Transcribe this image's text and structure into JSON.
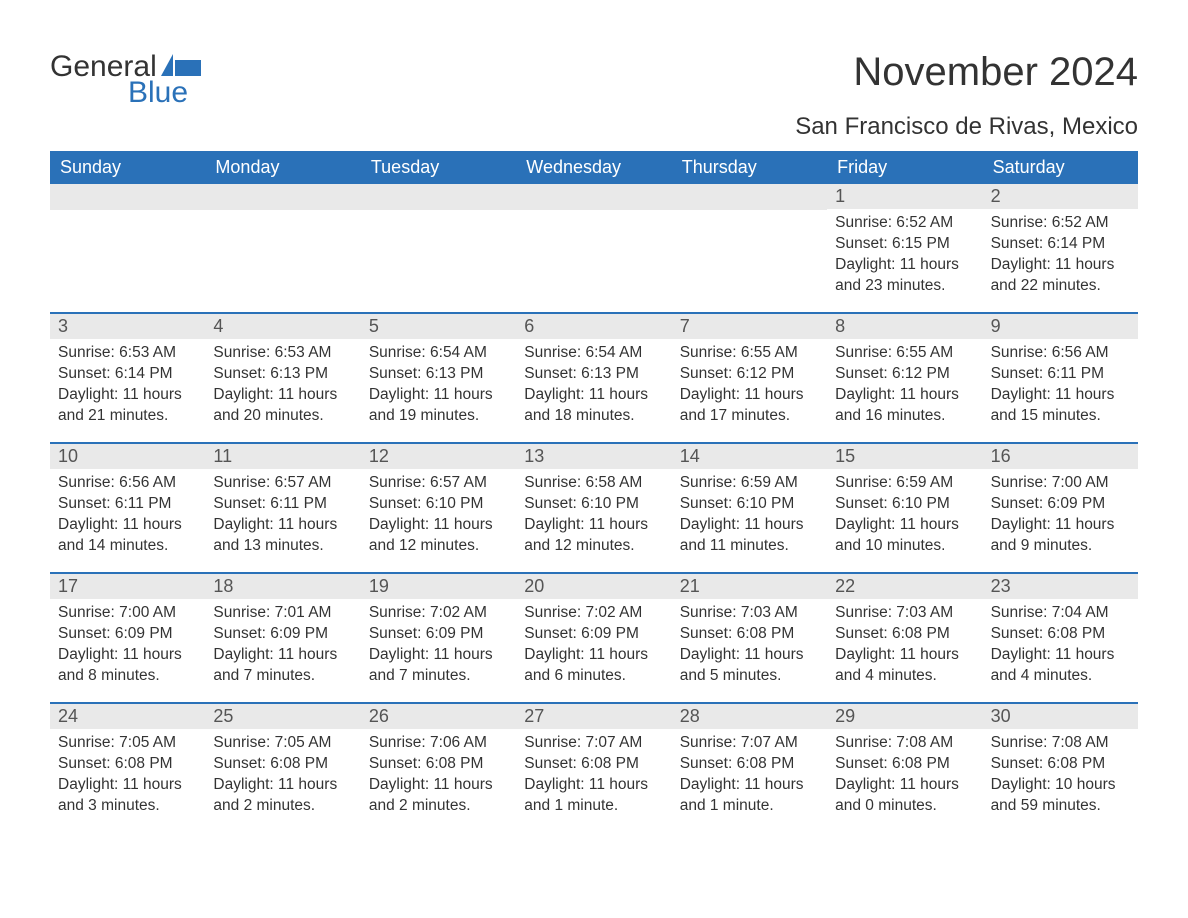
{
  "logo": {
    "text_general": "General",
    "text_blue": "Blue",
    "flag_color": "#2a71b8"
  },
  "title": "November 2024",
  "location": "San Francisco de Rivas, Mexico",
  "colors": {
    "header_bg": "#2a71b8",
    "header_text": "#ffffff",
    "daynum_bg": "#e9e9e9",
    "row_border": "#2a71b8",
    "body_text": "#333333"
  },
  "weekdays": [
    "Sunday",
    "Monday",
    "Tuesday",
    "Wednesday",
    "Thursday",
    "Friday",
    "Saturday"
  ],
  "weeks": [
    [
      {
        "empty": true
      },
      {
        "empty": true
      },
      {
        "empty": true
      },
      {
        "empty": true
      },
      {
        "empty": true
      },
      {
        "day": "1",
        "sunrise": "Sunrise: 6:52 AM",
        "sunset": "Sunset: 6:15 PM",
        "daylight": "Daylight: 11 hours and 23 minutes."
      },
      {
        "day": "2",
        "sunrise": "Sunrise: 6:52 AM",
        "sunset": "Sunset: 6:14 PM",
        "daylight": "Daylight: 11 hours and 22 minutes."
      }
    ],
    [
      {
        "day": "3",
        "sunrise": "Sunrise: 6:53 AM",
        "sunset": "Sunset: 6:14 PM",
        "daylight": "Daylight: 11 hours and 21 minutes."
      },
      {
        "day": "4",
        "sunrise": "Sunrise: 6:53 AM",
        "sunset": "Sunset: 6:13 PM",
        "daylight": "Daylight: 11 hours and 20 minutes."
      },
      {
        "day": "5",
        "sunrise": "Sunrise: 6:54 AM",
        "sunset": "Sunset: 6:13 PM",
        "daylight": "Daylight: 11 hours and 19 minutes."
      },
      {
        "day": "6",
        "sunrise": "Sunrise: 6:54 AM",
        "sunset": "Sunset: 6:13 PM",
        "daylight": "Daylight: 11 hours and 18 minutes."
      },
      {
        "day": "7",
        "sunrise": "Sunrise: 6:55 AM",
        "sunset": "Sunset: 6:12 PM",
        "daylight": "Daylight: 11 hours and 17 minutes."
      },
      {
        "day": "8",
        "sunrise": "Sunrise: 6:55 AM",
        "sunset": "Sunset: 6:12 PM",
        "daylight": "Daylight: 11 hours and 16 minutes."
      },
      {
        "day": "9",
        "sunrise": "Sunrise: 6:56 AM",
        "sunset": "Sunset: 6:11 PM",
        "daylight": "Daylight: 11 hours and 15 minutes."
      }
    ],
    [
      {
        "day": "10",
        "sunrise": "Sunrise: 6:56 AM",
        "sunset": "Sunset: 6:11 PM",
        "daylight": "Daylight: 11 hours and 14 minutes."
      },
      {
        "day": "11",
        "sunrise": "Sunrise: 6:57 AM",
        "sunset": "Sunset: 6:11 PM",
        "daylight": "Daylight: 11 hours and 13 minutes."
      },
      {
        "day": "12",
        "sunrise": "Sunrise: 6:57 AM",
        "sunset": "Sunset: 6:10 PM",
        "daylight": "Daylight: 11 hours and 12 minutes."
      },
      {
        "day": "13",
        "sunrise": "Sunrise: 6:58 AM",
        "sunset": "Sunset: 6:10 PM",
        "daylight": "Daylight: 11 hours and 12 minutes."
      },
      {
        "day": "14",
        "sunrise": "Sunrise: 6:59 AM",
        "sunset": "Sunset: 6:10 PM",
        "daylight": "Daylight: 11 hours and 11 minutes."
      },
      {
        "day": "15",
        "sunrise": "Sunrise: 6:59 AM",
        "sunset": "Sunset: 6:10 PM",
        "daylight": "Daylight: 11 hours and 10 minutes."
      },
      {
        "day": "16",
        "sunrise": "Sunrise: 7:00 AM",
        "sunset": "Sunset: 6:09 PM",
        "daylight": "Daylight: 11 hours and 9 minutes."
      }
    ],
    [
      {
        "day": "17",
        "sunrise": "Sunrise: 7:00 AM",
        "sunset": "Sunset: 6:09 PM",
        "daylight": "Daylight: 11 hours and 8 minutes."
      },
      {
        "day": "18",
        "sunrise": "Sunrise: 7:01 AM",
        "sunset": "Sunset: 6:09 PM",
        "daylight": "Daylight: 11 hours and 7 minutes."
      },
      {
        "day": "19",
        "sunrise": "Sunrise: 7:02 AM",
        "sunset": "Sunset: 6:09 PM",
        "daylight": "Daylight: 11 hours and 7 minutes."
      },
      {
        "day": "20",
        "sunrise": "Sunrise: 7:02 AM",
        "sunset": "Sunset: 6:09 PM",
        "daylight": "Daylight: 11 hours and 6 minutes."
      },
      {
        "day": "21",
        "sunrise": "Sunrise: 7:03 AM",
        "sunset": "Sunset: 6:08 PM",
        "daylight": "Daylight: 11 hours and 5 minutes."
      },
      {
        "day": "22",
        "sunrise": "Sunrise: 7:03 AM",
        "sunset": "Sunset: 6:08 PM",
        "daylight": "Daylight: 11 hours and 4 minutes."
      },
      {
        "day": "23",
        "sunrise": "Sunrise: 7:04 AM",
        "sunset": "Sunset: 6:08 PM",
        "daylight": "Daylight: 11 hours and 4 minutes."
      }
    ],
    [
      {
        "day": "24",
        "sunrise": "Sunrise: 7:05 AM",
        "sunset": "Sunset: 6:08 PM",
        "daylight": "Daylight: 11 hours and 3 minutes."
      },
      {
        "day": "25",
        "sunrise": "Sunrise: 7:05 AM",
        "sunset": "Sunset: 6:08 PM",
        "daylight": "Daylight: 11 hours and 2 minutes."
      },
      {
        "day": "26",
        "sunrise": "Sunrise: 7:06 AM",
        "sunset": "Sunset: 6:08 PM",
        "daylight": "Daylight: 11 hours and 2 minutes."
      },
      {
        "day": "27",
        "sunrise": "Sunrise: 7:07 AM",
        "sunset": "Sunset: 6:08 PM",
        "daylight": "Daylight: 11 hours and 1 minute."
      },
      {
        "day": "28",
        "sunrise": "Sunrise: 7:07 AM",
        "sunset": "Sunset: 6:08 PM",
        "daylight": "Daylight: 11 hours and 1 minute."
      },
      {
        "day": "29",
        "sunrise": "Sunrise: 7:08 AM",
        "sunset": "Sunset: 6:08 PM",
        "daylight": "Daylight: 11 hours and 0 minutes."
      },
      {
        "day": "30",
        "sunrise": "Sunrise: 7:08 AM",
        "sunset": "Sunset: 6:08 PM",
        "daylight": "Daylight: 10 hours and 59 minutes."
      }
    ]
  ]
}
